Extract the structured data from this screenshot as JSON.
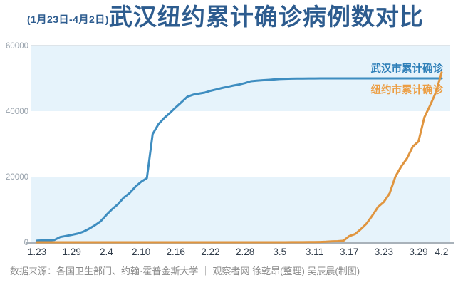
{
  "colors": {
    "title": "#2d5c8f",
    "wuhan_line": "#3e8dc0",
    "wuhan_label": "#2e7fb8",
    "ny_line": "#e0953f",
    "ny_label": "#ec9e44",
    "band": "#e6f3fb",
    "gridline": "#dde4e9",
    "axis": "#a9b2ba",
    "y_tick_text": "#98a2ac",
    "x_tick_text": "#2f3b49"
  },
  "footer": {
    "source": "数据来源：各国卫生部门、约翰·霍普金斯大学 ｜ 观察者网 徐乾昂(整理) 吴辰晨(制图)"
  },
  "chart_data": {
    "type": "line",
    "title": "武汉纽约累计确诊病例数对比",
    "date_range": "(1月23日-4月2日)",
    "xlabel": "",
    "ylabel": "",
    "ylim": [
      0,
      60000
    ],
    "y_ticks": [
      0,
      20000,
      40000,
      60000
    ],
    "y_tick_labels": [
      "0",
      "20000",
      "40000",
      "60000"
    ],
    "bands": [
      [
        0,
        20000
      ],
      [
        40000,
        60000
      ]
    ],
    "grid": "banded-horizontal",
    "legend_position": "top-right",
    "x_tick_labels": [
      "1.23",
      "1.29",
      "2.4",
      "2.10",
      "2.16",
      "2.22",
      "2.28",
      "3.5",
      "3.11",
      "3.17",
      "3.23",
      "3.29",
      "4.2"
    ],
    "x": [
      "1.23",
      "1.24",
      "1.25",
      "1.26",
      "1.27",
      "1.28",
      "1.29",
      "1.30",
      "1.31",
      "2.1",
      "2.2",
      "2.3",
      "2.4",
      "2.5",
      "2.6",
      "2.7",
      "2.8",
      "2.9",
      "2.10",
      "2.11",
      "2.12",
      "2.13",
      "2.14",
      "2.15",
      "2.16",
      "2.17",
      "2.18",
      "2.19",
      "2.20",
      "2.21",
      "2.22",
      "2.23",
      "2.24",
      "2.25",
      "2.26",
      "2.27",
      "2.28",
      "2.29",
      "3.1",
      "3.2",
      "3.3",
      "3.4",
      "3.5",
      "3.6",
      "3.7",
      "3.8",
      "3.9",
      "3.10",
      "3.11",
      "3.12",
      "3.13",
      "3.14",
      "3.15",
      "3.16",
      "3.17",
      "3.18",
      "3.19",
      "3.20",
      "3.21",
      "3.22",
      "3.23",
      "3.24",
      "3.25",
      "3.26",
      "3.27",
      "3.28",
      "3.29",
      "3.30",
      "3.31",
      "4.1",
      "4.2"
    ],
    "series": [
      {
        "name": "武汉市累计确诊",
        "color": "#3e8dc0",
        "values": [
          495,
          572,
          618,
          698,
          1590,
          1905,
          2261,
          2639,
          3215,
          4109,
          5142,
          6384,
          8351,
          10117,
          11618,
          13603,
          14982,
          16902,
          18454,
          19558,
          32994,
          35991,
          37914,
          39462,
          41152,
          42752,
          44412,
          45027,
          45346,
          45660,
          46201,
          46607,
          47071,
          47441,
          47824,
          48137,
          48557,
          49122,
          49315,
          49426,
          49540,
          49671,
          49797,
          49871,
          49912,
          49948,
          49965,
          49978,
          49986,
          49991,
          49995,
          49999,
          50003,
          50004,
          50005,
          50005,
          50005,
          50005,
          50006,
          50006,
          50006,
          50006,
          50006,
          50006,
          50006,
          50006,
          50006,
          50006,
          50006,
          50007,
          50008
        ]
      },
      {
        "name": "纽约市累计确诊",
        "color": "#e0953f",
        "values": [
          0,
          0,
          0,
          0,
          0,
          0,
          0,
          0,
          0,
          0,
          0,
          0,
          0,
          0,
          0,
          0,
          0,
          0,
          0,
          0,
          0,
          0,
          0,
          0,
          0,
          0,
          0,
          0,
          0,
          0,
          0,
          0,
          0,
          0,
          0,
          0,
          0,
          0,
          1,
          1,
          2,
          2,
          4,
          5,
          12,
          14,
          20,
          36,
          52,
          95,
          154,
          269,
          329,
          463,
          1871,
          2469,
          3954,
          5683,
          8115,
          10764,
          12305,
          14904,
          20011,
          23112,
          25573,
          29158,
          30765,
          38087,
          41771,
          45707,
          51809
        ]
      }
    ]
  }
}
